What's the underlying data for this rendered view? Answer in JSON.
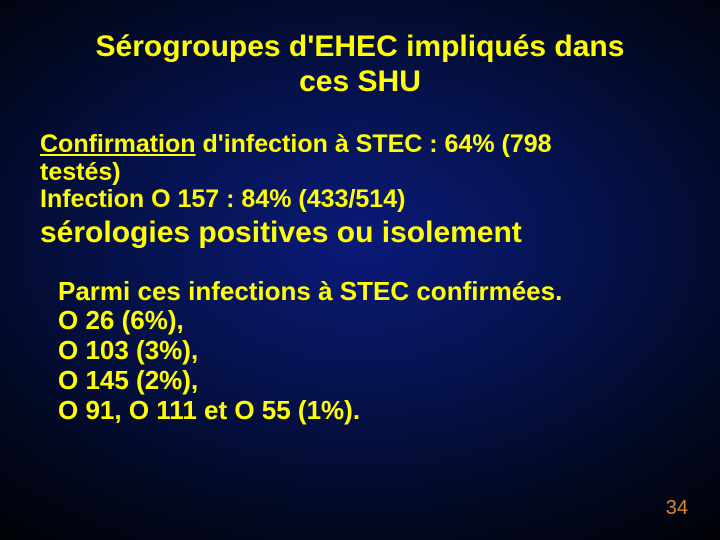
{
  "colors": {
    "background_center": "#0a1a78",
    "background_outer": "#000000",
    "text_main": "#ffff00",
    "page_number": "#d88a2a"
  },
  "typography": {
    "font_family": "Comic Sans MS",
    "title_fontsize": 30,
    "body_fontsize": 26,
    "page_fontsize": 20,
    "weight": "bold"
  },
  "title_line1": "Sérogroupes d'EHEC  impliqués dans",
  "title_line2": "ces SHU",
  "conf_word": "Confirmation",
  "conf_rest1": " d'infection à STEC : 64% (798",
  "conf_rest2": "testés)",
  "inf_line": "Infection  O 157 : 84% (433/514)",
  "sero_line": "sérologies positives ou isolement",
  "parmi_line": "Parmi ces infections à STEC confirmées.",
  "o26": "O 26 (6%),",
  "o103": "O 103 (3%),",
  "o145": "O 145 (2%),",
  "o91": "O 91, O 111 et O 55 (1%).",
  "page_number": "34"
}
